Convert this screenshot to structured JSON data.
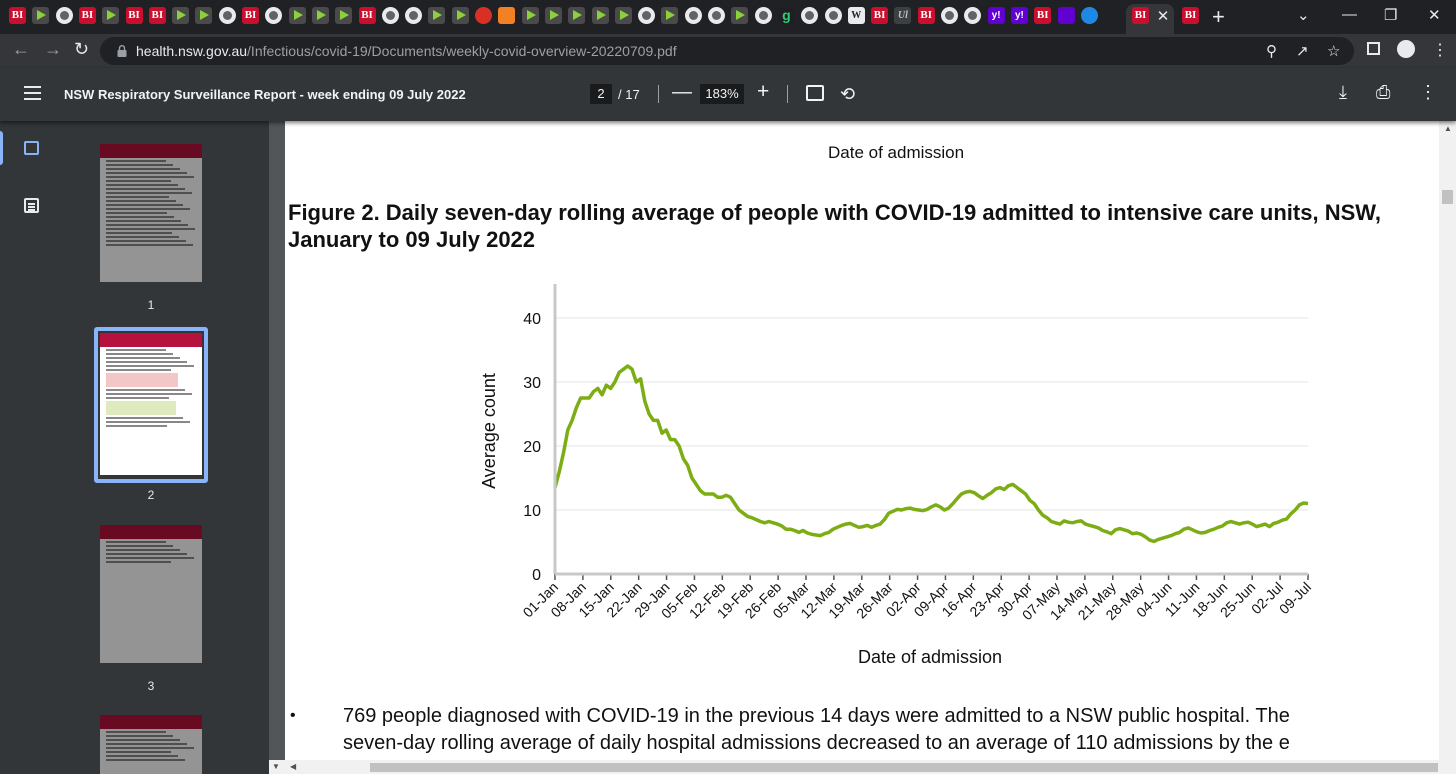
{
  "browser": {
    "tab_favicons": [
      "BI",
      "play",
      "globe",
      "BI",
      "play",
      "BI",
      "BI",
      "play",
      "play",
      "globe",
      "BI",
      "globe",
      "play",
      "play",
      "play",
      "BI",
      "globe",
      "globe",
      "play",
      "play",
      "red",
      "orange",
      "play",
      "play",
      "play",
      "play",
      "play",
      "globe",
      "play",
      "globe",
      "globe",
      "play",
      "globe",
      "g",
      "globe",
      "globe",
      "wiki",
      "BI",
      "ul",
      "BI",
      "globe",
      "globe",
      "yahoo",
      "yahoo",
      "BI",
      "mail",
      "earth"
    ],
    "active_tab_favicon": "BI",
    "tab_close": "✕",
    "new_tab": "+",
    "window_controls": {
      "tab_list": "⌄",
      "minimize": "—",
      "restore": "❐",
      "close": "✕"
    },
    "url_host": "health.nsw.gov.au",
    "url_path": "/Infectious/covid-19/Documents/weekly-covid-overview-20220709.pdf"
  },
  "pdf_toolbar": {
    "title": "NSW Respiratory Surveillance Report - week ending 09 July 2022",
    "current_page": "2",
    "total_pages": "/ 17",
    "zoom": "183%"
  },
  "sidebar": {
    "thumbnails": [
      {
        "label": "1"
      },
      {
        "label": "2"
      },
      {
        "label": "3"
      },
      {
        "label": ""
      }
    ]
  },
  "document": {
    "previous_axis_title": "Date of admission",
    "figure_title_line1": "Figure 2. Daily seven-day rolling average of people with COVID-19 admitted to intensive care units, NSW,",
    "figure_title_line2": "January to 09 July 2022",
    "bullet": "•",
    "body_line1": "769 people diagnosed with COVID-19 in the previous 14 days were admitted to a NSW public hospital. The",
    "body_line2": "seven-day rolling average of daily hospital admissions decreased to an average of 110 admissions by the e"
  },
  "chart_data": {
    "type": "line",
    "title": "",
    "xlabel": "Date of admission",
    "ylabel": "Average count",
    "ylim": [
      0,
      45
    ],
    "yticks": [
      0,
      10,
      20,
      30,
      40
    ],
    "categories": [
      "01-Jan",
      "08-Jan",
      "15-Jan",
      "22-Jan",
      "29-Jan",
      "05-Feb",
      "12-Feb",
      "19-Feb",
      "26-Feb",
      "05-Mar",
      "12-Mar",
      "19-Mar",
      "26-Mar",
      "02-Apr",
      "09-Apr",
      "16-Apr",
      "23-Apr",
      "30-Apr",
      "07-May",
      "14-May",
      "21-May",
      "28-May",
      "04-Jun",
      "11-Jun",
      "18-Jun",
      "25-Jun",
      "02-Jul",
      "09-Jul"
    ],
    "series": [
      {
        "name": "ICU seven-day rolling average",
        "color": "#7dad14",
        "day_values": [
          13.5,
          16,
          19,
          22.5,
          24,
          26,
          27.5,
          27.5,
          27.5,
          28.5,
          29,
          28,
          29.5,
          29,
          30,
          31.5,
          32,
          32.5,
          32,
          30,
          30.5,
          27,
          25,
          24,
          24,
          22,
          22.5,
          21,
          21,
          20,
          18,
          17,
          15,
          14,
          13,
          12.5,
          12.5,
          12.5,
          12,
          12,
          12.3,
          12,
          11,
          10,
          9.5,
          9,
          8.8,
          8.5,
          8.2,
          8,
          8.2,
          8,
          7.8,
          7.5,
          7,
          7,
          6.8,
          6.5,
          6.8,
          6.4,
          6.2,
          6.1,
          6,
          6.3,
          6.5,
          7,
          7.3,
          7.6,
          7.8,
          7.9,
          7.6,
          7.3,
          7.4,
          7.6,
          7.3,
          7.6,
          7.8,
          8.5,
          9.5,
          9.8,
          10.1,
          10,
          10.2,
          10.3,
          10.1,
          10,
          9.9,
          10.1,
          10.5,
          10.8,
          10.5,
          10,
          10.3,
          11,
          11.8,
          12.5,
          12.8,
          12.9,
          12.7,
          12.2,
          11.8,
          12.3,
          12.7,
          13.3,
          13.5,
          13.2,
          13.8,
          14,
          13.5,
          13,
          12.5,
          11.5,
          11,
          10,
          9.2,
          8.8,
          8.2,
          8,
          7.8,
          8.3,
          8.1,
          8,
          8.2,
          8.3,
          7.8,
          7.6,
          7.4,
          7.2,
          6.8,
          6.6,
          6.3,
          6.9,
          7.1,
          6.9,
          6.7,
          6.3,
          6.4,
          6.2,
          5.8,
          5.3,
          5.1,
          5.4,
          5.6,
          5.8,
          6,
          6.3,
          6.5,
          7,
          7.2,
          6.9,
          6.6,
          6.4,
          6.5,
          6.8,
          7,
          7.3,
          7.5,
          8,
          8.2,
          8,
          7.8,
          8,
          8.1,
          7.8,
          7.4,
          7.6,
          7.8,
          7.4,
          7.9,
          8.1,
          8.4,
          8.6,
          9.4,
          10,
          10.8,
          11.1,
          11
        ]
      }
    ]
  }
}
